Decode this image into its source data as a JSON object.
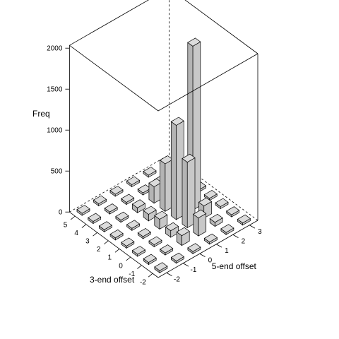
{
  "chart_data": {
    "type": "bar3d",
    "x_axis": {
      "title": "5-end offset",
      "ticks": [
        -2,
        -1,
        0,
        1,
        2,
        3
      ]
    },
    "y_axis": {
      "title": "3-end offset",
      "ticks": [
        -2,
        -1,
        0,
        1,
        2,
        3,
        4,
        5
      ]
    },
    "z_axis": {
      "title": "Freq",
      "ticks": [
        0,
        500,
        1000,
        1500,
        2000
      ],
      "range": [
        0,
        2000
      ]
    },
    "bars": [
      {
        "x": -2,
        "y": -2,
        "z": 0
      },
      {
        "x": -2,
        "y": -1,
        "z": 0
      },
      {
        "x": -2,
        "y": 0,
        "z": 0
      },
      {
        "x": -2,
        "y": 1,
        "z": 0
      },
      {
        "x": -2,
        "y": 2,
        "z": 0
      },
      {
        "x": -2,
        "y": 3,
        "z": 0
      },
      {
        "x": -2,
        "y": 4,
        "z": 0
      },
      {
        "x": -2,
        "y": 5,
        "z": 0
      },
      {
        "x": -1,
        "y": -2,
        "z": 0
      },
      {
        "x": -1,
        "y": -1,
        "z": 0
      },
      {
        "x": -1,
        "y": 0,
        "z": 0
      },
      {
        "x": -1,
        "y": 1,
        "z": 0
      },
      {
        "x": -1,
        "y": 2,
        "z": 0
      },
      {
        "x": -1,
        "y": 3,
        "z": 0
      },
      {
        "x": -1,
        "y": 4,
        "z": 0
      },
      {
        "x": -1,
        "y": 5,
        "z": 0
      },
      {
        "x": 0,
        "y": -2,
        "z": 0
      },
      {
        "x": 0,
        "y": -1,
        "z": 120
      },
      {
        "x": 0,
        "y": 0,
        "z": 80
      },
      {
        "x": 0,
        "y": 1,
        "z": 120
      },
      {
        "x": 0,
        "y": 2,
        "z": 80
      },
      {
        "x": 0,
        "y": 3,
        "z": 60
      },
      {
        "x": 0,
        "y": 4,
        "z": 0
      },
      {
        "x": 0,
        "y": 5,
        "z": 0
      },
      {
        "x": 1,
        "y": -2,
        "z": 0
      },
      {
        "x": 1,
        "y": -1,
        "z": 220
      },
      {
        "x": 1,
        "y": 0,
        "z": 800
      },
      {
        "x": 1,
        "y": 1,
        "z": 1150
      },
      {
        "x": 1,
        "y": 2,
        "z": 580
      },
      {
        "x": 1,
        "y": 3,
        "z": 200
      },
      {
        "x": 1,
        "y": 4,
        "z": 0
      },
      {
        "x": 1,
        "y": 5,
        "z": 0
      },
      {
        "x": 2,
        "y": -2,
        "z": 0
      },
      {
        "x": 2,
        "y": -1,
        "z": 50
      },
      {
        "x": 2,
        "y": 0,
        "z": 150
      },
      {
        "x": 2,
        "y": 1,
        "z": 2000
      },
      {
        "x": 2,
        "y": 2,
        "z": 220
      },
      {
        "x": 2,
        "y": 3,
        "z": 40
      },
      {
        "x": 2,
        "y": 4,
        "z": 0
      },
      {
        "x": 2,
        "y": 5,
        "z": 0
      },
      {
        "x": 3,
        "y": -2,
        "z": 0
      },
      {
        "x": 3,
        "y": -1,
        "z": 0
      },
      {
        "x": 3,
        "y": 0,
        "z": 0
      },
      {
        "x": 3,
        "y": 1,
        "z": 0
      },
      {
        "x": 3,
        "y": 2,
        "z": 0
      },
      {
        "x": 3,
        "y": 3,
        "z": 0
      },
      {
        "x": 3,
        "y": 4,
        "z": 0
      },
      {
        "x": 3,
        "y": 5,
        "z": 0
      }
    ],
    "grid": false,
    "colors": {
      "bar_face": "#c8c8c8",
      "bar_top": "#dcdcdc",
      "bar_side": "#b4b4b4",
      "outline": "#000000"
    }
  }
}
